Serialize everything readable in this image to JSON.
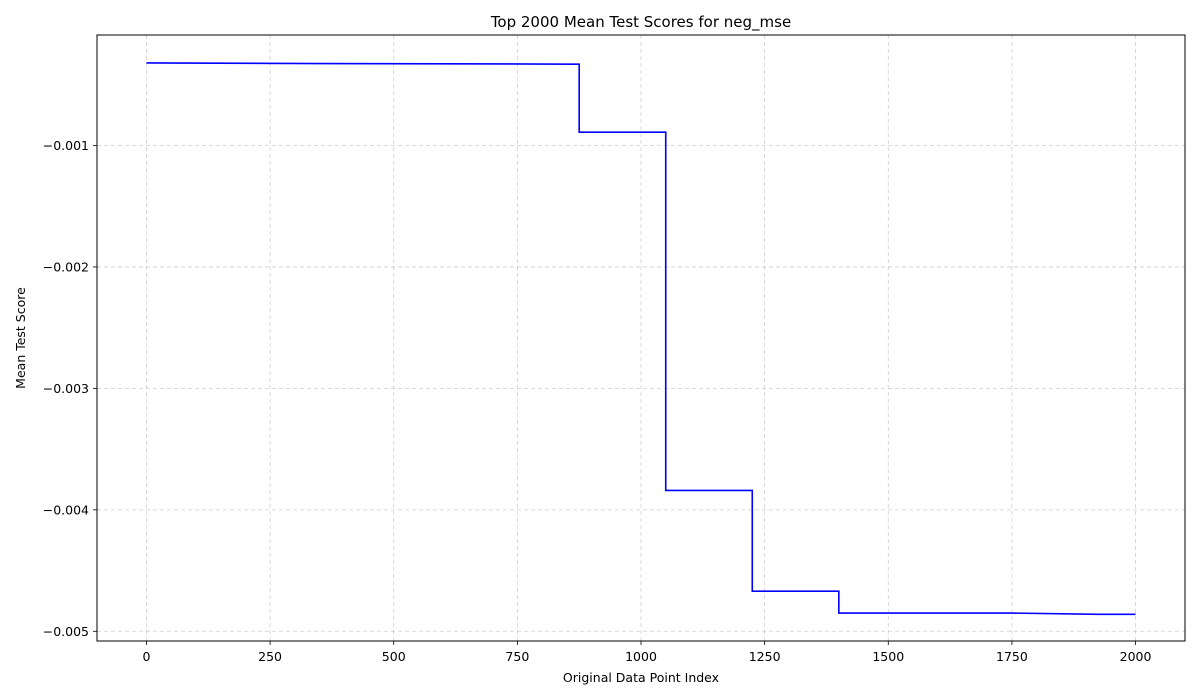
{
  "chart_data": {
    "type": "line",
    "title": "Top 2000 Mean Test Scores for neg_mse",
    "xlabel": "Original Data Point Index",
    "ylabel": "Mean Test Score",
    "xlim": [
      -100,
      2100
    ],
    "ylim": [
      -0.00508,
      -9e-05
    ],
    "xticks": [
      0,
      250,
      500,
      750,
      1000,
      1250,
      1500,
      1750,
      2000
    ],
    "xtick_labels": [
      "0",
      "250",
      "500",
      "750",
      "1000",
      "1250",
      "1500",
      "1750",
      "2000"
    ],
    "yticks": [
      -0.005,
      -0.004,
      -0.003,
      -0.002,
      -0.001
    ],
    "ytick_labels": [
      "−0.005",
      "−0.004",
      "−0.003",
      "−0.002",
      "−0.001"
    ],
    "grid": true,
    "series": [
      {
        "color": "#0000ff",
        "x": [
          0,
          350,
          875,
          875,
          1050,
          1050,
          1225,
          1225,
          1400,
          1400,
          1750,
          1925,
          2000
        ],
        "y": [
          -0.00032,
          -0.000325,
          -0.00033,
          -0.00089,
          -0.00089,
          -0.00384,
          -0.00384,
          -0.00467,
          -0.00467,
          -0.00485,
          -0.00485,
          -0.00486,
          -0.00486
        ]
      }
    ]
  }
}
